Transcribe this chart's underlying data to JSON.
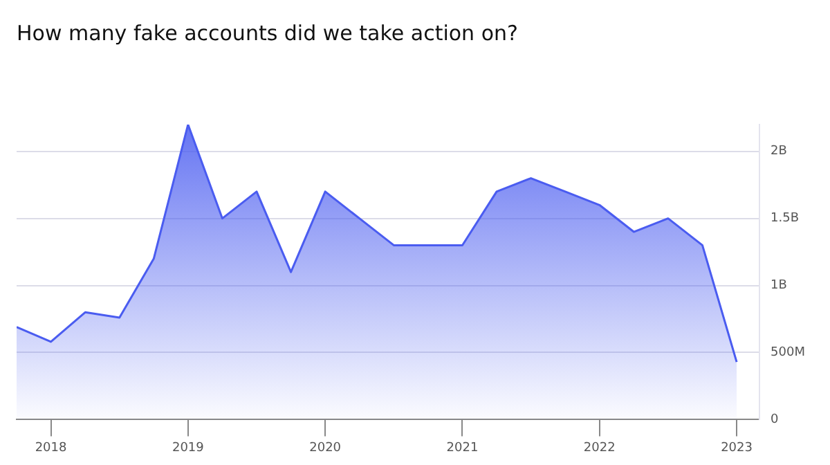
{
  "chart_data": {
    "type": "area",
    "title": "How many fake accounts did we take action on?",
    "x": [
      "2017-10",
      "2018-01",
      "2018-04",
      "2018-07",
      "2018-10",
      "2019-01",
      "2019-04",
      "2019-07",
      "2019-10",
      "2020-01",
      "2020-04",
      "2020-07",
      "2020-10",
      "2021-01",
      "2021-04",
      "2021-07",
      "2021-10",
      "2022-01",
      "2022-04",
      "2022-07",
      "2022-10",
      "2023-01"
    ],
    "values": [
      690000000,
      580000000,
      800000000,
      760000000,
      1200000000,
      2200000000,
      1500000000,
      1700000000,
      1100000000,
      1700000000,
      1500000000,
      1300000000,
      1300000000,
      1300000000,
      1700000000,
      1800000000,
      1700000000,
      1600000000,
      1400000000,
      1500000000,
      1300000000,
      430000000
    ],
    "color": "#4a5cf0",
    "xlim": [
      "2017-10",
      "2023-03"
    ],
    "xticks": [
      "2018",
      "2019",
      "2020",
      "2021",
      "2022",
      "2023"
    ],
    "ylim": [
      0,
      2200000000
    ],
    "yticks": [
      0,
      {
        "value": 500000000,
        "label": "500M"
      },
      {
        "value": 1000000000,
        "label": "1B"
      },
      {
        "value": 1500000000,
        "label": "1.5B"
      },
      {
        "value": 2000000000,
        "label": "2B"
      }
    ],
    "grid": "y",
    "legend": false,
    "marker": "none",
    "line_style": "solid"
  }
}
